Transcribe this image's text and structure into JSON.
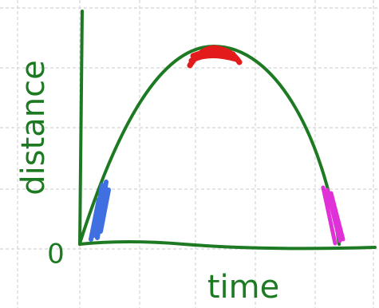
{
  "axes": {
    "y_label": "distance",
    "x_label": "time",
    "origin": "0"
  }
}
